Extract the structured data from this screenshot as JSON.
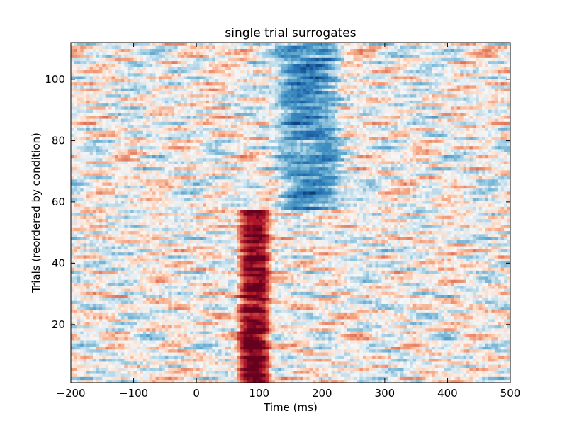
{
  "chart_data": {
    "type": "heatmap",
    "title": "single trial surrogates",
    "xlabel": "Time (ms)",
    "ylabel": "Trials (reordered by condition)",
    "xlim": [
      -200,
      500
    ],
    "ylim": [
      1,
      112
    ],
    "x_ticks": [
      -200,
      -100,
      0,
      100,
      200,
      300,
      400,
      500
    ],
    "x_tick_labels": [
      "−200",
      "−100",
      "0",
      "100",
      "200",
      "300",
      "400",
      "500"
    ],
    "y_ticks": [
      20,
      40,
      60,
      80,
      100
    ],
    "y_tick_labels": [
      "20",
      "40",
      "60",
      "80",
      "100"
    ],
    "grid": false,
    "colormap": "RdBu_r",
    "trials": 112,
    "condition_boundary_trial": 57,
    "features": [
      {
        "condition": "trials 1-57",
        "time_ms": [
          55,
          125
        ],
        "response": "strong positive (red)"
      },
      {
        "condition": "trials 58-112",
        "time_ms": [
          120,
          240
        ],
        "response": "negative (blue)"
      }
    ],
    "colors": {
      "positive": "#67001f",
      "neutral": "#f7f7f7",
      "negative": "#053061"
    }
  }
}
